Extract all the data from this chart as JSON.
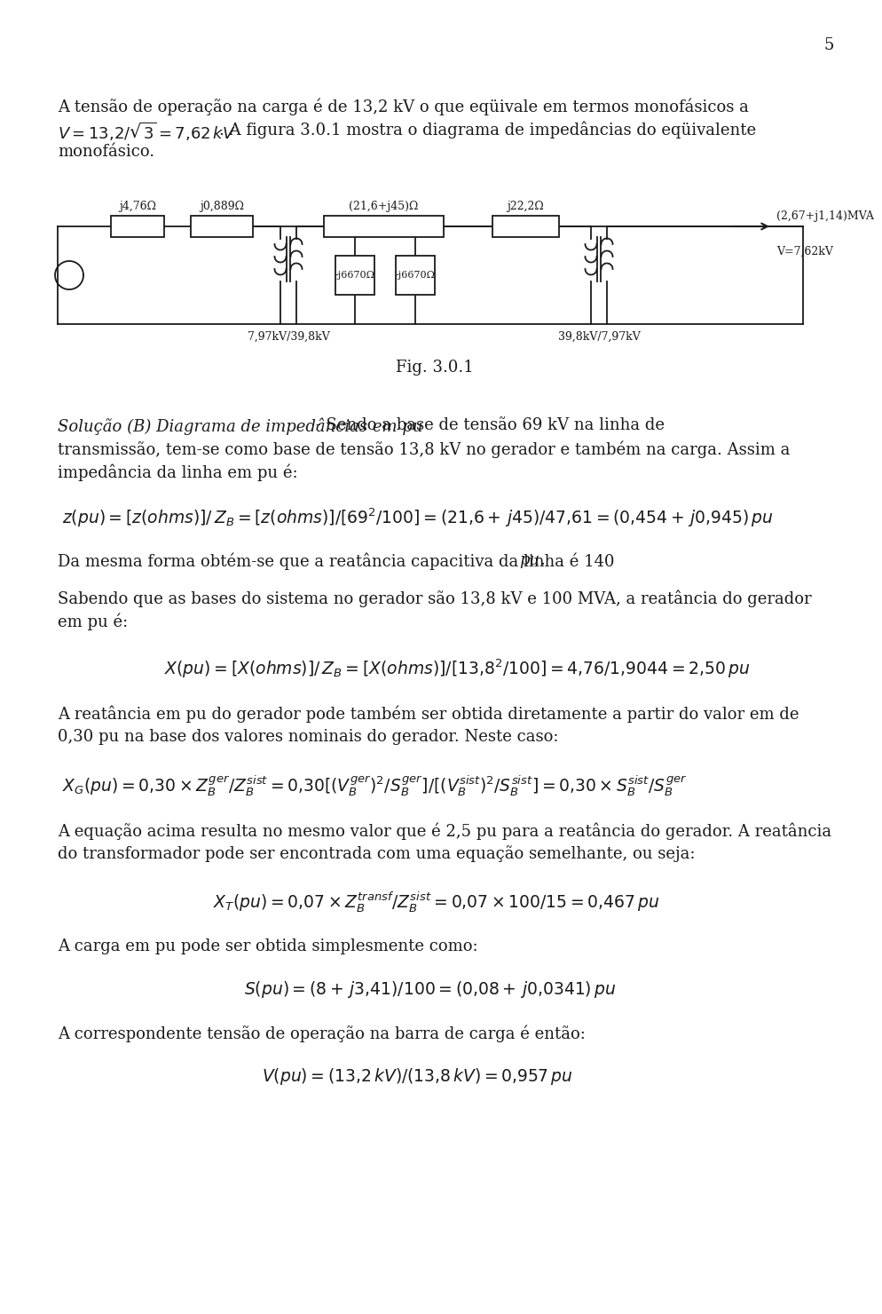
{
  "page_number": "5",
  "bg_color": "#ffffff",
  "text_color": "#1a1a1a",
  "fs_body": 13.0,
  "fs_eq": 13.5,
  "fs_circuit": 9.0,
  "lm": 0.058,
  "para1_line1": "A tensão de operação na carga é de 13,2 kV o que eqüivale em termos monofásicos a",
  "para1_line2_normal": ". A figura 3.0.1 mostra o diagrama de impedâncias do eqüivalente",
  "para1_line3": "monofásico.",
  "fig_label": "Fig. 3.0.1",
  "solucao_italic": "Solução (B) Diagrama de impedâncias em pu",
  "solucao_rest_1": " - Sendo a base de tensão 69 kV na linha de",
  "sol_line2": "transmissão, tem-se como base de tensão 13,8 kV no gerador e também na carga. Assim a",
  "sol_line3": "impedância da linha em pu é:",
  "para2": "Da mesma forma obtém-se que a reatância capacitiva da linha é 140 ",
  "para2_pu": "pu",
  "para3a": "Sabendo que as bases do sistema no gerador são 13,8 kV e 100 MVA, a reatância do gerador",
  "para3b": "em pu é:",
  "para4a": "A reatância em pu do gerador pode também ser obtida diretamente a partir do valor em de",
  "para4b": "0,30 pu na base dos valores nominais do gerador. Neste caso:",
  "para5a": "A equação acima resulta no mesmo valor que é 2,5 pu para a reatância do gerador. A reatância",
  "para5b": "do transformador pode ser encontrada com uma equação semelhante, ou seja:",
  "para6": "A carga em pu pode ser obtida simplesmente como:",
  "para7": "A correspondente tensão de operação na barra de carga é então:",
  "circuit_labels": {
    "ind1": "j4,76Ω",
    "ind2": "j0,889Ω",
    "line_imp": "(21,6+j45)Ω",
    "cap1": "-j6670Ω",
    "cap2": "-j6670Ω",
    "ind4": "j22,2Ω",
    "load": "(2,67+j1,14)MVA",
    "v_load": "V=7,62kV",
    "tr1_label": "7,97kV/39,8kV",
    "tr2_label": "39,8kV/7,97kV"
  }
}
